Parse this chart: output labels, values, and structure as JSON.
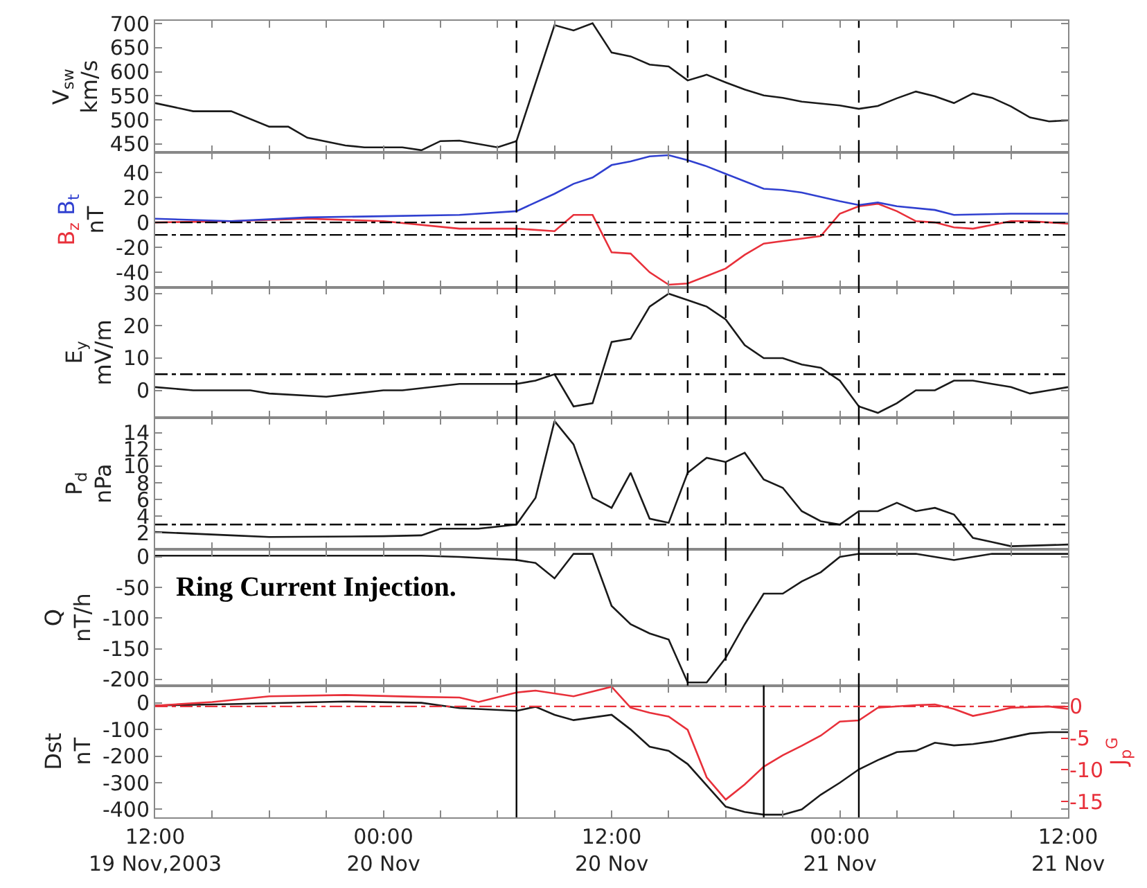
{
  "chart_data": [
    {
      "type": "line",
      "ylabel": "V$_{sw}$\nkm/s",
      "xlim": [
        "2003-11-19T12:00",
        "2003-11-21T12:00"
      ],
      "ylim": [
        432,
        706
      ],
      "yticks": [
        450,
        500,
        550,
        600,
        650,
        700
      ],
      "tick_labels": "y",
      "line_style": "solid",
      "xticks": [
        {
          "value": "2003-11-19T12:00",
          "label": null
        },
        {
          "value": "2003-11-19T15:00",
          "label": null
        },
        {
          "value": "2003-11-19T18:00",
          "label": null
        },
        {
          "value": "2003-11-19T21:00",
          "label": null
        },
        {
          "value": "2003-11-20T00:00",
          "label": null
        },
        {
          "value": "2003-11-20T03:00",
          "label": null
        },
        {
          "value": "2003-11-20T06:00",
          "label": null
        },
        {
          "value": "2003-11-20T09:00",
          "label": null
        },
        {
          "value": "2003-11-20T12:00",
          "label": null
        },
        {
          "value": "2003-11-20T15:00",
          "label": null
        },
        {
          "value": "2003-11-20T18:00",
          "label": null
        },
        {
          "value": "2003-11-20T21:00",
          "label": null
        },
        {
          "value": "2003-11-21T00:00",
          "label": null
        },
        {
          "value": "2003-11-21T03:00",
          "label": null
        },
        {
          "value": "2003-11-21T06:00",
          "label": null
        },
        {
          "value": "2003-11-21T09:00",
          "label": null
        },
        {
          "value": "2003-11-21T12:00",
          "label": null
        }
      ],
      "ref_lines": [
        {
          "axis": "x",
          "value": "2003-11-20T07:00",
          "line_style": "dashed",
          "color": "#000000"
        },
        {
          "axis": "x",
          "value": "2003-11-20T16:00",
          "line_style": "dashed",
          "color": "#000000"
        },
        {
          "axis": "x",
          "value": "2003-11-20T18:00",
          "line_style": "dashed",
          "color": "#000000"
        },
        {
          "axis": "x",
          "value": "2003-11-21T01:00",
          "line_style": "dashed",
          "color": "#000000"
        }
      ],
      "series": [
        {
          "color": "#1a1a1a",
          "x": [
            "2003-11-19T12:00",
            "2003-11-19T14:00",
            "2003-11-19T16:00",
            "2003-11-19T18:00",
            "2003-11-19T19:00",
            "2003-11-19T20:00",
            "2003-11-19T22:00",
            "2003-11-19T23:00",
            "2003-11-20T01:00",
            "2003-11-20T02:00",
            "2003-11-20T03:00",
            "2003-11-20T04:00",
            "2003-11-20T06:00",
            "2003-11-20T07:00",
            "2003-11-20T09:00",
            "2003-11-20T10:00",
            "2003-11-20T11:00",
            "2003-11-20T12:00",
            "2003-11-20T13:00",
            "2003-11-20T14:00",
            "2003-11-20T15:00",
            "2003-11-20T16:00",
            "2003-11-20T17:00",
            "2003-11-20T18:00",
            "2003-11-20T19:00",
            "2003-11-20T20:00",
            "2003-11-20T21:00",
            "2003-11-20T22:00",
            "2003-11-21T00:00",
            "2003-11-21T01:00",
            "2003-11-21T02:00",
            "2003-11-21T03:00",
            "2003-11-21T04:00",
            "2003-11-21T05:00",
            "2003-11-21T06:00",
            "2003-11-21T07:00",
            "2003-11-21T08:00",
            "2003-11-21T09:00",
            "2003-11-21T10:00",
            "2003-11-21T11:00",
            "2003-11-21T12:00"
          ],
          "values": [
            535,
            518,
            518,
            486,
            486,
            463,
            447,
            443,
            443,
            437,
            456,
            457,
            443,
            456,
            697,
            686,
            701,
            640,
            632,
            615,
            611,
            582,
            594,
            578,
            563,
            551,
            546,
            538,
            530,
            523,
            529,
            545,
            559,
            549,
            535,
            555,
            546,
            528,
            505,
            497,
            499
          ]
        }
      ]
    },
    {
      "type": "line",
      "ylabel": "nT",
      "xlim": [
        "2003-11-19T12:00",
        "2003-11-21T12:00"
      ],
      "ylim": [
        -52,
        56
      ],
      "yticks": [
        -40,
        -20,
        0,
        20,
        40
      ],
      "tick_labels": "y",
      "line_style": "solid",
      "xticks": [
        {
          "value": "2003-11-19T12:00",
          "label": null
        },
        {
          "value": "2003-11-19T15:00",
          "label": null
        },
        {
          "value": "2003-11-19T18:00",
          "label": null
        },
        {
          "value": "2003-11-19T21:00",
          "label": null
        },
        {
          "value": "2003-11-20T00:00",
          "label": null
        },
        {
          "value": "2003-11-20T03:00",
          "label": null
        },
        {
          "value": "2003-11-20T06:00",
          "label": null
        },
        {
          "value": "2003-11-20T09:00",
          "label": null
        },
        {
          "value": "2003-11-20T12:00",
          "label": null
        },
        {
          "value": "2003-11-20T15:00",
          "label": null
        },
        {
          "value": "2003-11-20T18:00",
          "label": null
        },
        {
          "value": "2003-11-20T21:00",
          "label": null
        },
        {
          "value": "2003-11-21T00:00",
          "label": null
        },
        {
          "value": "2003-11-21T03:00",
          "label": null
        },
        {
          "value": "2003-11-21T06:00",
          "label": null
        },
        {
          "value": "2003-11-21T09:00",
          "label": null
        },
        {
          "value": "2003-11-21T12:00",
          "label": null
        }
      ],
      "ref_lines": [
        {
          "axis": "x",
          "value": "2003-11-20T07:00",
          "line_style": "dashed",
          "color": "#000000"
        },
        {
          "axis": "x",
          "value": "2003-11-20T16:00",
          "line_style": "dashed",
          "color": "#000000"
        },
        {
          "axis": "x",
          "value": "2003-11-20T18:00",
          "line_style": "dashed",
          "color": "#000000"
        },
        {
          "axis": "x",
          "value": "2003-11-21T01:00",
          "line_style": "dashed",
          "color": "#000000"
        },
        {
          "axis": "y",
          "value": 0,
          "line_style": "dashdot",
          "color": "#000000"
        },
        {
          "axis": "y",
          "value": -10,
          "line_style": "dashdot",
          "color": "#000000"
        }
      ],
      "series": [
        {
          "name": "B$_{z}$",
          "color": "#e8303a",
          "x": [
            "2003-11-19T12:00",
            "2003-11-19T16:00",
            "2003-11-19T20:00",
            "2003-11-20T00:00",
            "2003-11-20T04:00",
            "2003-11-20T07:00",
            "2003-11-20T09:00",
            "2003-11-20T10:00",
            "2003-11-20T11:00",
            "2003-11-20T12:00",
            "2003-11-20T13:00",
            "2003-11-20T14:00",
            "2003-11-20T15:00",
            "2003-11-20T16:00",
            "2003-11-20T17:00",
            "2003-11-20T18:00",
            "2003-11-20T19:00",
            "2003-11-20T20:00",
            "2003-11-20T21:00",
            "2003-11-20T22:00",
            "2003-11-20T23:00",
            "2003-11-21T00:00",
            "2003-11-21T01:00",
            "2003-11-21T02:00",
            "2003-11-21T03:00",
            "2003-11-21T04:00",
            "2003-11-21T05:00",
            "2003-11-21T06:00",
            "2003-11-21T07:00",
            "2003-11-21T08:00",
            "2003-11-21T09:00",
            "2003-11-21T10:00",
            "2003-11-21T12:00"
          ],
          "values": [
            0,
            1,
            3,
            1,
            -5,
            -5,
            -7,
            6,
            6,
            -24,
            -25,
            -40,
            -50,
            -49,
            -43,
            -37,
            -26,
            -17,
            -15,
            -13,
            -11,
            7,
            13,
            15,
            9,
            1,
            0,
            -4,
            -5,
            -2,
            1,
            1,
            -1
          ]
        },
        {
          "name": "B$_{t}$",
          "color": "#3040d0",
          "x": [
            "2003-11-19T12:00",
            "2003-11-19T16:00",
            "2003-11-19T20:00",
            "2003-11-20T00:00",
            "2003-11-20T04:00",
            "2003-11-20T07:00",
            "2003-11-20T09:00",
            "2003-11-20T10:00",
            "2003-11-20T11:00",
            "2003-11-20T12:00",
            "2003-11-20T13:00",
            "2003-11-20T14:00",
            "2003-11-20T15:00",
            "2003-11-20T16:00",
            "2003-11-20T17:00",
            "2003-11-20T18:00",
            "2003-11-20T19:00",
            "2003-11-20T20:00",
            "2003-11-20T21:00",
            "2003-11-20T22:00",
            "2003-11-21T00:00",
            "2003-11-21T01:00",
            "2003-11-21T02:00",
            "2003-11-21T03:00",
            "2003-11-21T05:00",
            "2003-11-21T06:00",
            "2003-11-21T09:00",
            "2003-11-21T12:00"
          ],
          "values": [
            3,
            1,
            4,
            5,
            6,
            9,
            23,
            31,
            36,
            46,
            49,
            53,
            54,
            50,
            45,
            39,
            33,
            27,
            26,
            24,
            17,
            14,
            16,
            13,
            10,
            6,
            7,
            7
          ]
        }
      ]
    },
    {
      "type": "line",
      "ylabel": "E$_{y}$\nmV/m",
      "xlim": [
        "2003-11-19T12:00",
        "2003-11-21T12:00"
      ],
      "ylim": [
        -8.5,
        32
      ],
      "yticks": [
        0,
        10,
        20,
        30
      ],
      "tick_labels": "y",
      "line_style": "solid",
      "xticks": [
        {
          "value": "2003-11-19T12:00",
          "label": null
        },
        {
          "value": "2003-11-19T15:00",
          "label": null
        },
        {
          "value": "2003-11-19T18:00",
          "label": null
        },
        {
          "value": "2003-11-19T21:00",
          "label": null
        },
        {
          "value": "2003-11-20T00:00",
          "label": null
        },
        {
          "value": "2003-11-20T03:00",
          "label": null
        },
        {
          "value": "2003-11-20T06:00",
          "label": null
        },
        {
          "value": "2003-11-20T09:00",
          "label": null
        },
        {
          "value": "2003-11-20T12:00",
          "label": null
        },
        {
          "value": "2003-11-20T15:00",
          "label": null
        },
        {
          "value": "2003-11-20T18:00",
          "label": null
        },
        {
          "value": "2003-11-20T21:00",
          "label": null
        },
        {
          "value": "2003-11-21T00:00",
          "label": null
        },
        {
          "value": "2003-11-21T03:00",
          "label": null
        },
        {
          "value": "2003-11-21T06:00",
          "label": null
        },
        {
          "value": "2003-11-21T09:00",
          "label": null
        },
        {
          "value": "2003-11-21T12:00",
          "label": null
        }
      ],
      "ref_lines": [
        {
          "axis": "x",
          "value": "2003-11-20T07:00",
          "line_style": "dashed",
          "color": "#000000"
        },
        {
          "axis": "x",
          "value": "2003-11-20T16:00",
          "line_style": "dashed",
          "color": "#000000"
        },
        {
          "axis": "x",
          "value": "2003-11-20T18:00",
          "line_style": "dashed",
          "color": "#000000"
        },
        {
          "axis": "x",
          "value": "2003-11-21T01:00",
          "line_style": "dashed",
          "color": "#000000"
        },
        {
          "axis": "y",
          "value": 5,
          "line_style": "dashdot",
          "color": "#000000"
        }
      ],
      "series": [
        {
          "color": "#1a1a1a",
          "x": [
            "2003-11-19T12:00",
            "2003-11-19T14:00",
            "2003-11-19T17:00",
            "2003-11-19T18:00",
            "2003-11-19T21:00",
            "2003-11-20T00:00",
            "2003-11-20T01:00",
            "2003-11-20T04:00",
            "2003-11-20T07:00",
            "2003-11-20T08:00",
            "2003-11-20T09:00",
            "2003-11-20T10:00",
            "2003-11-20T11:00",
            "2003-11-20T12:00",
            "2003-11-20T13:00",
            "2003-11-20T14:00",
            "2003-11-20T15:00",
            "2003-11-20T16:00",
            "2003-11-20T17:00",
            "2003-11-20T18:00",
            "2003-11-20T19:00",
            "2003-11-20T20:00",
            "2003-11-20T21:00",
            "2003-11-20T22:00",
            "2003-11-20T23:00",
            "2003-11-21T00:00",
            "2003-11-21T01:00",
            "2003-11-21T02:00",
            "2003-11-21T03:00",
            "2003-11-21T04:00",
            "2003-11-21T05:00",
            "2003-11-21T06:00",
            "2003-11-21T07:00",
            "2003-11-21T08:00",
            "2003-11-21T09:00",
            "2003-11-21T10:00",
            "2003-11-21T11:00",
            "2003-11-21T12:00"
          ],
          "values": [
            1,
            0,
            0,
            -1,
            -2,
            0,
            0,
            2,
            2,
            3,
            5,
            -5,
            -4,
            15,
            16,
            26,
            30,
            28,
            26,
            22,
            14,
            10,
            10,
            8,
            7,
            3,
            -5,
            -7,
            -4,
            0,
            0,
            3,
            3,
            2,
            1,
            -1,
            0,
            1
          ]
        }
      ]
    },
    {
      "type": "line",
      "ylabel": "P$_{d}$\nnPa",
      "xlim": [
        "2003-11-19T12:00",
        "2003-11-21T12:00"
      ],
      "ylim": [
        0,
        15.8
      ],
      "yticks": [
        2,
        4,
        6,
        8,
        10,
        12,
        14
      ],
      "tick_labels": "y",
      "line_style": "solid",
      "xticks": [
        {
          "value": "2003-11-19T12:00",
          "label": null
        },
        {
          "value": "2003-11-19T15:00",
          "label": null
        },
        {
          "value": "2003-11-19T18:00",
          "label": null
        },
        {
          "value": "2003-11-19T21:00",
          "label": null
        },
        {
          "value": "2003-11-20T00:00",
          "label": null
        },
        {
          "value": "2003-11-20T03:00",
          "label": null
        },
        {
          "value": "2003-11-20T06:00",
          "label": null
        },
        {
          "value": "2003-11-20T09:00",
          "label": null
        },
        {
          "value": "2003-11-20T12:00",
          "label": null
        },
        {
          "value": "2003-11-20T15:00",
          "label": null
        },
        {
          "value": "2003-11-20T18:00",
          "label": null
        },
        {
          "value": "2003-11-20T21:00",
          "label": null
        },
        {
          "value": "2003-11-21T00:00",
          "label": null
        },
        {
          "value": "2003-11-21T03:00",
          "label": null
        },
        {
          "value": "2003-11-21T06:00",
          "label": null
        },
        {
          "value": "2003-11-21T09:00",
          "label": null
        },
        {
          "value": "2003-11-21T12:00",
          "label": null
        }
      ],
      "ref_lines": [
        {
          "axis": "x",
          "value": "2003-11-20T07:00",
          "line_style": "dashed",
          "color": "#000000"
        },
        {
          "axis": "x",
          "value": "2003-11-20T16:00",
          "line_style": "dashed",
          "color": "#000000"
        },
        {
          "axis": "x",
          "value": "2003-11-20T18:00",
          "line_style": "dashed",
          "color": "#000000"
        },
        {
          "axis": "x",
          "value": "2003-11-21T01:00",
          "line_style": "dashed",
          "color": "#000000"
        },
        {
          "axis": "y",
          "value": 3,
          "line_style": "dashdot",
          "color": "#000000"
        }
      ],
      "series": [
        {
          "color": "#1a1a1a",
          "x": [
            "2003-11-19T12:00",
            "2003-11-19T16:00",
            "2003-11-19T18:00",
            "2003-11-20T00:00",
            "2003-11-20T02:00",
            "2003-11-20T03:00",
            "2003-11-20T05:00",
            "2003-11-20T07:00",
            "2003-11-20T08:00",
            "2003-11-20T09:00",
            "2003-11-20T10:00",
            "2003-11-20T11:00",
            "2003-11-20T12:00",
            "2003-11-20T13:00",
            "2003-11-20T14:00",
            "2003-11-20T15:00",
            "2003-11-20T16:00",
            "2003-11-20T17:00",
            "2003-11-20T18:00",
            "2003-11-20T19:00",
            "2003-11-20T20:00",
            "2003-11-20T21:00",
            "2003-11-20T22:00",
            "2003-11-20T23:00",
            "2003-11-21T00:00",
            "2003-11-21T01:00",
            "2003-11-21T02:00",
            "2003-11-21T03:00",
            "2003-11-21T04:00",
            "2003-11-21T05:00",
            "2003-11-21T06:00",
            "2003-11-21T07:00",
            "2003-11-21T08:00",
            "2003-11-21T09:00",
            "2003-11-21T12:00"
          ],
          "values": [
            2.1,
            1.7,
            1.5,
            1.6,
            1.7,
            2.5,
            2.5,
            3,
            6.2,
            15.4,
            12.6,
            6.2,
            5,
            9.2,
            3.7,
            3.2,
            9.2,
            11,
            10.5,
            11.6,
            8.4,
            7.4,
            4.6,
            3.4,
            3,
            4.6,
            4.6,
            5.6,
            4.6,
            5,
            4.2,
            1.4,
            0.9,
            0.4,
            0.6
          ]
        }
      ]
    },
    {
      "type": "line",
      "ylabel": "Q\nnT/h",
      "xlim": [
        "2003-11-19T12:00",
        "2003-11-21T12:00"
      ],
      "ylim": [
        -210,
        12
      ],
      "yticks": [
        -200,
        -150,
        -100,
        -50,
        0
      ],
      "tick_labels": "y",
      "line_style": "solid",
      "annotations": [
        "Ring Current Injection."
      ],
      "xticks": [
        {
          "value": "2003-11-19T12:00",
          "label": null
        },
        {
          "value": "2003-11-19T15:00",
          "label": null
        },
        {
          "value": "2003-11-19T18:00",
          "label": null
        },
        {
          "value": "2003-11-19T21:00",
          "label": null
        },
        {
          "value": "2003-11-20T00:00",
          "label": null
        },
        {
          "value": "2003-11-20T03:00",
          "label": null
        },
        {
          "value": "2003-11-20T06:00",
          "label": null
        },
        {
          "value": "2003-11-20T09:00",
          "label": null
        },
        {
          "value": "2003-11-20T12:00",
          "label": null
        },
        {
          "value": "2003-11-20T15:00",
          "label": null
        },
        {
          "value": "2003-11-20T18:00",
          "label": null
        },
        {
          "value": "2003-11-20T21:00",
          "label": null
        },
        {
          "value": "2003-11-21T00:00",
          "label": null
        },
        {
          "value": "2003-11-21T03:00",
          "label": null
        },
        {
          "value": "2003-11-21T06:00",
          "label": null
        },
        {
          "value": "2003-11-21T09:00",
          "label": null
        },
        {
          "value": "2003-11-21T12:00",
          "label": null
        }
      ],
      "ref_lines": [
        {
          "axis": "x",
          "value": "2003-11-20T07:00",
          "line_style": "dashed",
          "color": "#000000"
        },
        {
          "axis": "x",
          "value": "2003-11-20T16:00",
          "line_style": "dashed",
          "color": "#000000"
        },
        {
          "axis": "x",
          "value": "2003-11-20T18:00",
          "line_style": "dashed",
          "color": "#000000"
        },
        {
          "axis": "x",
          "value": "2003-11-21T01:00",
          "line_style": "dashed",
          "color": "#000000"
        }
      ],
      "series": [
        {
          "color": "#1a1a1a",
          "x": [
            "2003-11-19T12:00",
            "2003-11-20T02:00",
            "2003-11-20T04:00",
            "2003-11-20T07:00",
            "2003-11-20T08:00",
            "2003-11-20T09:00",
            "2003-11-20T10:00",
            "2003-11-20T11:00",
            "2003-11-20T12:00",
            "2003-11-20T13:00",
            "2003-11-20T14:00",
            "2003-11-20T15:00",
            "2003-11-20T16:00",
            "2003-11-20T17:00",
            "2003-11-20T18:00",
            "2003-11-20T19:00",
            "2003-11-20T20:00",
            "2003-11-20T21:00",
            "2003-11-20T22:00",
            "2003-11-20T23:00",
            "2003-11-21T00:00",
            "2003-11-21T01:00",
            "2003-11-21T04:00",
            "2003-11-21T05:00",
            "2003-11-21T06:00",
            "2003-11-21T07:00",
            "2003-11-21T08:00",
            "2003-11-21T12:00"
          ],
          "values": [
            2,
            2,
            0,
            -5,
            -10,
            -35,
            5,
            5,
            -80,
            -110,
            -125,
            -135,
            -205,
            -205,
            -165,
            -110,
            -60,
            -60,
            -40,
            -25,
            0,
            5,
            5,
            0,
            -5,
            0,
            5,
            5
          ]
        }
      ]
    },
    {
      "type": "line",
      "ylabel": "Dst\nnT",
      "y2label": "J$_{p}$$^{G}$",
      "xlim": [
        "2003-11-19T12:00",
        "2003-11-21T12:00"
      ],
      "ylim": [
        -430,
        65
      ],
      "yticks": [
        -400,
        -300,
        -200,
        -100,
        0
      ],
      "y2lim": [
        -17.5,
        3.3
      ],
      "y2ticks": [
        -15,
        -10,
        -5,
        0
      ],
      "line_style": "solid",
      "xticks": [
        {
          "value": "2003-11-19T12:00",
          "label": "12:00\n19 Nov,2003"
        },
        {
          "value": "2003-11-19T15:00",
          "label": null
        },
        {
          "value": "2003-11-19T18:00",
          "label": null
        },
        {
          "value": "2003-11-19T21:00",
          "label": null
        },
        {
          "value": "2003-11-20T00:00",
          "label": "00:00\n20 Nov"
        },
        {
          "value": "2003-11-20T03:00",
          "label": null
        },
        {
          "value": "2003-11-20T06:00",
          "label": null
        },
        {
          "value": "2003-11-20T09:00",
          "label": null
        },
        {
          "value": "2003-11-20T12:00",
          "label": "12:00\n20 Nov"
        },
        {
          "value": "2003-11-20T15:00",
          "label": null
        },
        {
          "value": "2003-11-20T18:00",
          "label": null
        },
        {
          "value": "2003-11-20T21:00",
          "label": null
        },
        {
          "value": "2003-11-21T00:00",
          "label": "00:00\n21 Nov"
        },
        {
          "value": "2003-11-21T03:00",
          "label": null
        },
        {
          "value": "2003-11-21T06:00",
          "label": null
        },
        {
          "value": "2003-11-21T09:00",
          "label": null
        },
        {
          "value": "2003-11-21T12:00",
          "label": "12:00\n21 Nov"
        }
      ],
      "ref_lines": [
        {
          "axis": "x",
          "value": "2003-11-20T07:00",
          "line_style": "solid",
          "color": "#000000"
        },
        {
          "axis": "x",
          "value": "2003-11-20T20:00",
          "line_style": "solid",
          "color": "#000000"
        },
        {
          "axis": "x",
          "value": "2003-11-21T01:00",
          "line_style": "solid",
          "color": "#000000"
        },
        {
          "axis": "y2",
          "value": 0,
          "line_style": "dashdot",
          "color": "#e8303a"
        }
      ],
      "series": [
        {
          "color": "#1a1a1a",
          "x": [
            "2003-11-19T12:00",
            "2003-11-19T16:00",
            "2003-11-19T22:00",
            "2003-11-20T02:00",
            "2003-11-20T04:00",
            "2003-11-20T07:00",
            "2003-11-20T08:00",
            "2003-11-20T09:00",
            "2003-11-20T10:00",
            "2003-11-20T12:00",
            "2003-11-20T13:00",
            "2003-11-20T14:00",
            "2003-11-20T15:00",
            "2003-11-20T16:00",
            "2003-11-20T17:00",
            "2003-11-20T18:00",
            "2003-11-20T19:00",
            "2003-11-20T20:00",
            "2003-11-20T21:00",
            "2003-11-20T22:00",
            "2003-11-20T23:00",
            "2003-11-21T00:00",
            "2003-11-21T01:00",
            "2003-11-21T02:00",
            "2003-11-21T03:00",
            "2003-11-21T04:00",
            "2003-11-21T05:00",
            "2003-11-21T06:00",
            "2003-11-21T07:00",
            "2003-11-21T08:00",
            "2003-11-21T09:00",
            "2003-11-21T10:00",
            "2003-11-21T11:00",
            "2003-11-21T12:00"
          ],
          "values": [
            -10,
            -5,
            5,
            0,
            -20,
            -30,
            -15,
            -45,
            -65,
            -45,
            -100,
            -165,
            -180,
            -230,
            -310,
            -390,
            -410,
            -420,
            -420,
            -400,
            -345,
            -300,
            -250,
            -215,
            -185,
            -180,
            -150,
            -160,
            -155,
            -145,
            -130,
            -115,
            -110,
            -110
          ]
        },
        {
          "axis": "y2",
          "color": "#e8303a",
          "x": [
            "2003-11-19T12:00",
            "2003-11-19T15:00",
            "2003-11-19T18:00",
            "2003-11-19T22:00",
            "2003-11-20T02:00",
            "2003-11-20T04:00",
            "2003-11-20T05:00",
            "2003-11-20T07:00",
            "2003-11-20T08:00",
            "2003-11-20T10:00",
            "2003-11-20T12:00",
            "2003-11-20T13:00",
            "2003-11-20T14:00",
            "2003-11-20T15:00",
            "2003-11-20T16:00",
            "2003-11-20T17:00",
            "2003-11-20T18:00",
            "2003-11-20T19:00",
            "2003-11-20T20:00",
            "2003-11-20T21:00",
            "2003-11-20T22:00",
            "2003-11-20T23:00",
            "2003-11-21T00:00",
            "2003-11-21T01:00",
            "2003-11-21T02:00",
            "2003-11-21T04:00",
            "2003-11-21T05:00",
            "2003-11-21T06:00",
            "2003-11-21T07:00",
            "2003-11-21T08:00",
            "2003-11-21T09:00",
            "2003-11-21T11:00",
            "2003-11-21T12:00"
          ],
          "values": [
            0.1,
            0.7,
            1.6,
            1.8,
            1.5,
            1.4,
            0.7,
            2.2,
            2.5,
            1.6,
            3.1,
            -0.2,
            -1,
            -1.6,
            -3.7,
            -11.2,
            -14.7,
            -12.3,
            -9.5,
            -7.7,
            -6.2,
            -4.6,
            -2.4,
            -2.2,
            -0.2,
            0.2,
            0.3,
            -0.4,
            -1.5,
            -0.9,
            -0.2,
            0,
            -0.4
          ]
        }
      ]
    }
  ]
}
